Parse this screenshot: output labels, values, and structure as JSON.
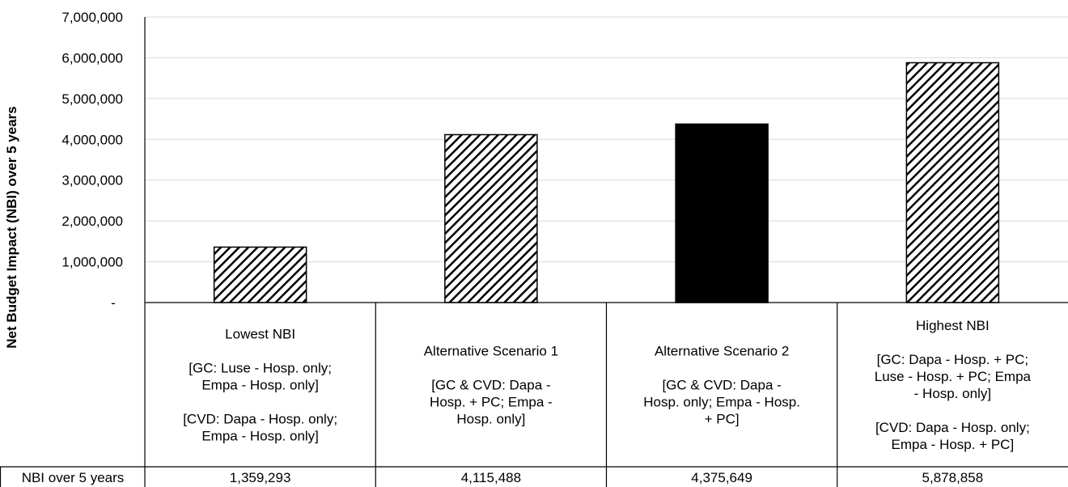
{
  "chart_data": {
    "type": "bar",
    "ylabel": "Net Budget Impact (NBI) over 5 years",
    "ylim": [
      0,
      7000000
    ],
    "yticks": [
      {
        "value": 0,
        "label": "-"
      },
      {
        "value": 1000000,
        "label": "1,000,000"
      },
      {
        "value": 2000000,
        "label": "2,000,000"
      },
      {
        "value": 3000000,
        "label": "3,000,000"
      },
      {
        "value": 4000000,
        "label": "4,000,000"
      },
      {
        "value": 5000000,
        "label": "5,000,000"
      },
      {
        "value": 6000000,
        "label": "6,000,000"
      },
      {
        "value": 7000000,
        "label": "7,000,000"
      }
    ],
    "grid": true,
    "categories": [
      {
        "title": "Lowest NBI",
        "lines": [
          "Lowest NBI",
          "",
          "[GC: Luse - Hosp. only;",
          "Empa - Hosp. only]",
          "",
          "[CVD: Dapa - Hosp. only;",
          "Empa - Hosp. only]"
        ]
      },
      {
        "title": "Alternative Scenario 1",
        "lines": [
          "Alternative Scenario 1",
          "",
          "[GC & CVD: Dapa -",
          "Hosp. + PC; Empa -",
          "Hosp. only]"
        ]
      },
      {
        "title": "Alternative Scenario 2",
        "lines": [
          "Alternative Scenario 2",
          "",
          "[GC & CVD: Dapa -",
          "Hosp. only; Empa - Hosp.",
          "+ PC]"
        ]
      },
      {
        "title": "Highest NBI",
        "lines": [
          "Highest NBI",
          "",
          "[GC: Dapa - Hosp. + PC;",
          "Luse - Hosp. + PC; Empa",
          "- Hosp. only]",
          "",
          "[CVD: Dapa - Hosp. only;",
          "Empa - Hosp. + PC]"
        ]
      }
    ],
    "values": [
      1359293,
      4115488,
      4375649,
      5878858
    ],
    "fills": [
      "hatch",
      "hatch",
      "solid",
      "hatch"
    ],
    "table": {
      "row_label": "NBI over 5 years",
      "values": [
        "1,359,293",
        "4,115,488",
        "4,375,649",
        "5,878,858"
      ]
    },
    "colors": {
      "bar": "#000000",
      "hatch_bg": "#ffffff",
      "grid": "#d9d9d9"
    }
  }
}
